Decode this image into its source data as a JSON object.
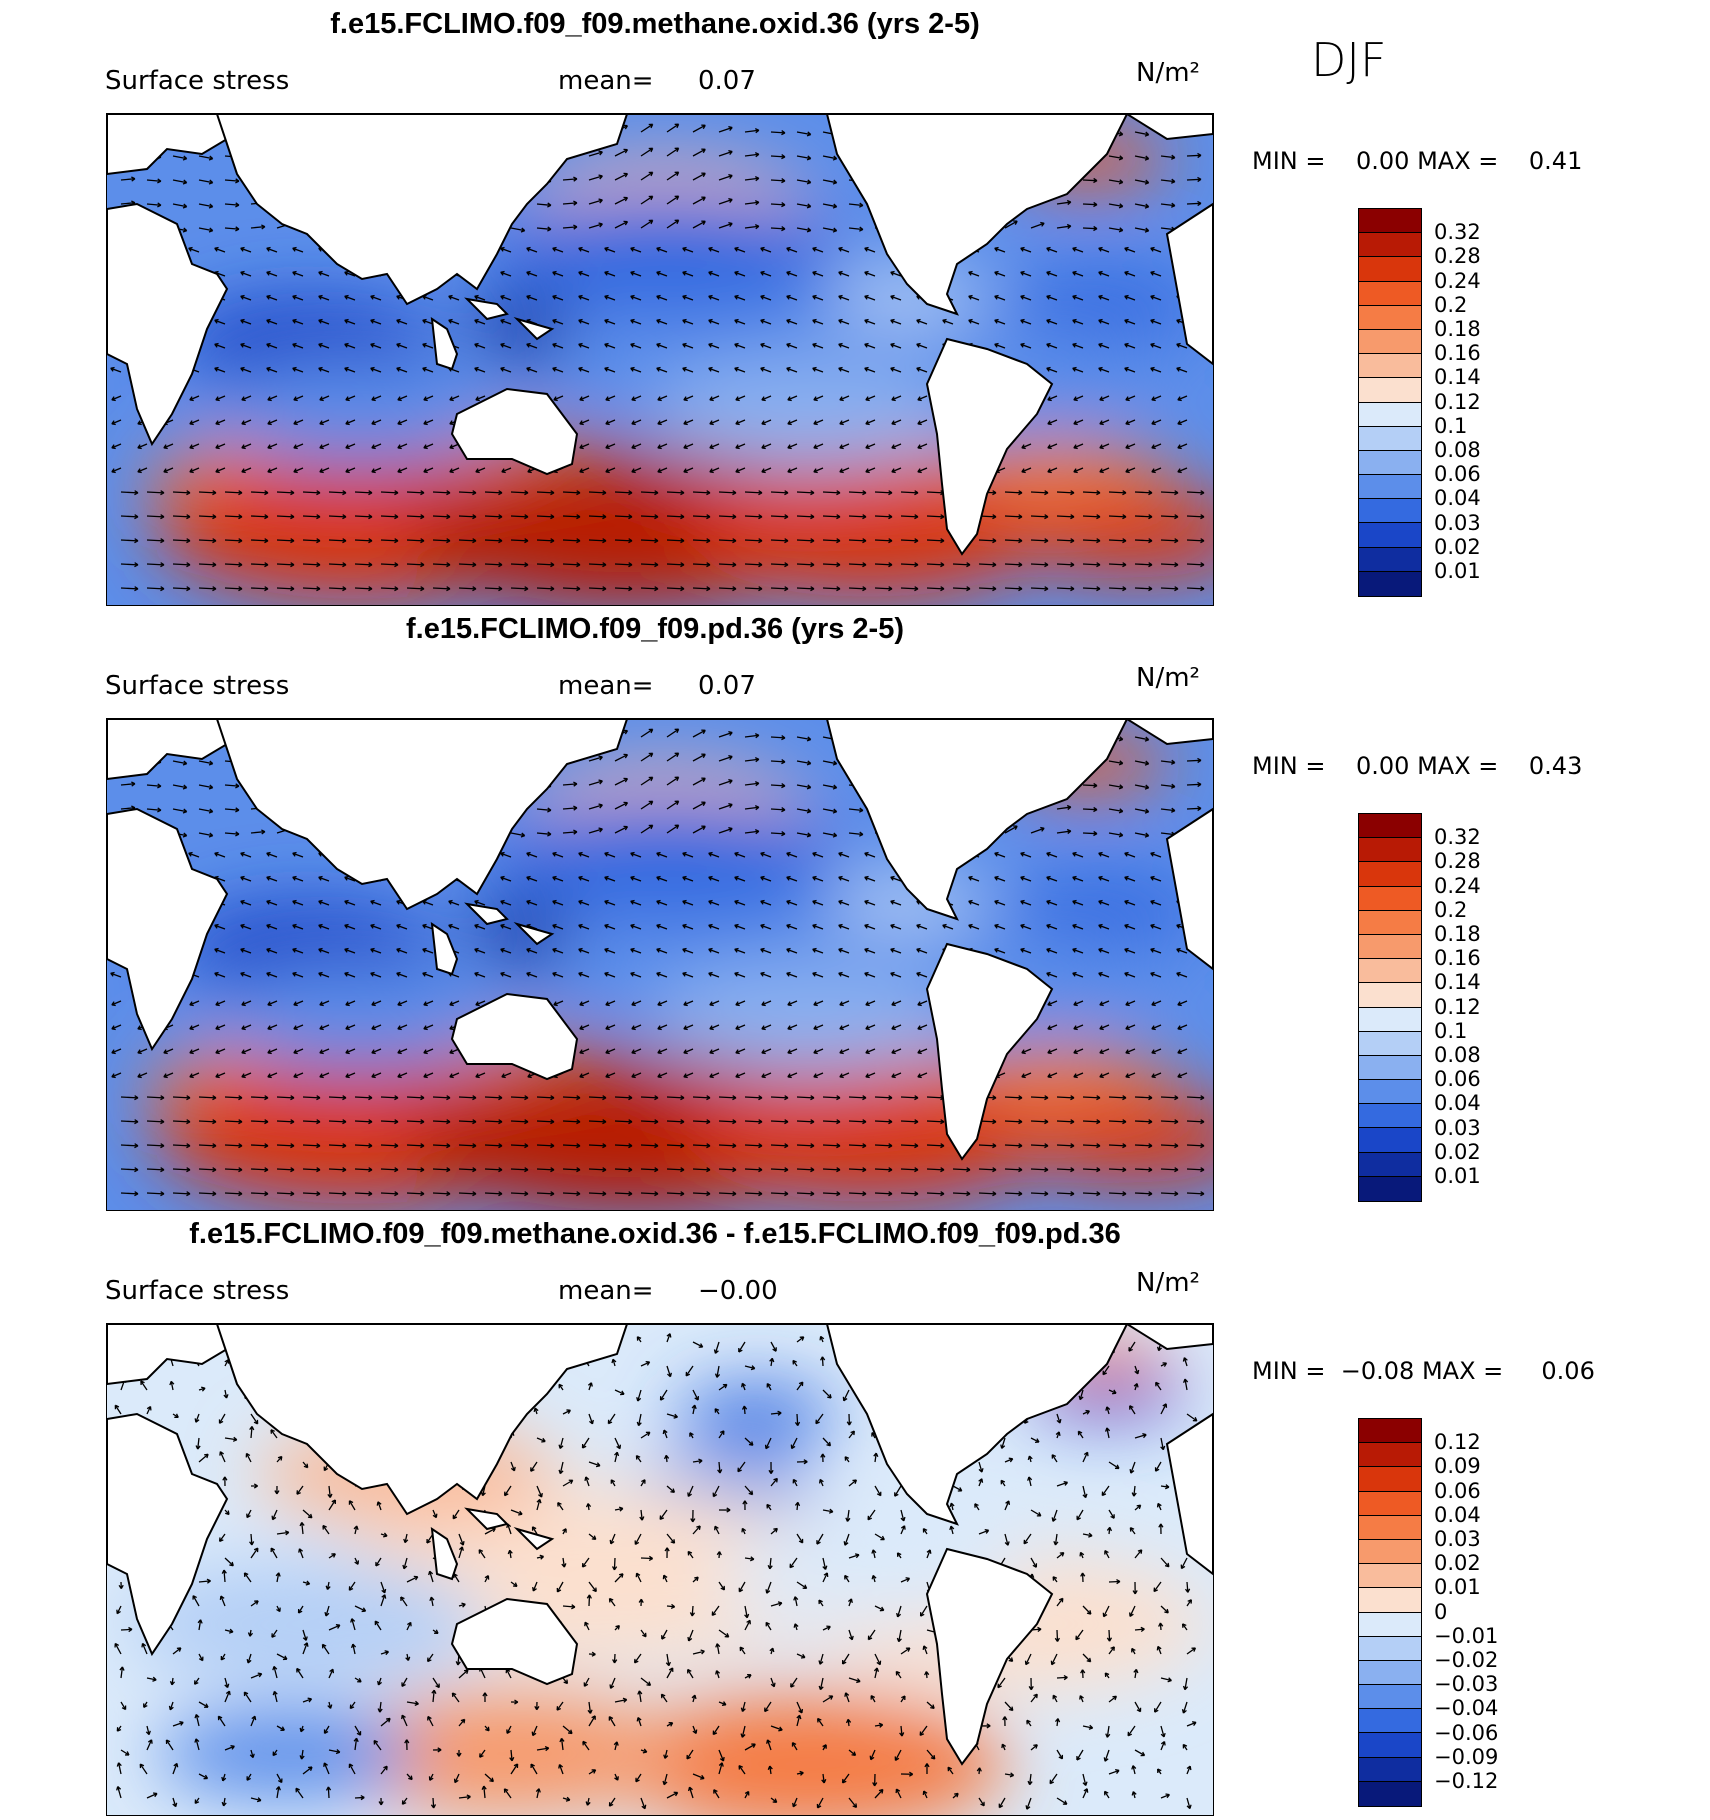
{
  "season": "DJF",
  "panels": [
    {
      "title": "f.e15.FCLIMO.f09_f09.methane.oxid.36 (yrs 2-5)",
      "variable": "Surface stress",
      "mean_label": "mean=",
      "mean_value": "0.07",
      "units": "N/m²",
      "min_label": "MIN =",
      "min_value": "0.00",
      "max_label": "MAX =",
      "max_value": "0.41",
      "colorbar": [
        "0.32",
        "0.28",
        "0.24",
        "0.2",
        "0.18",
        "0.16",
        "0.14",
        "0.12",
        "0.1",
        "0.08",
        "0.06",
        "0.04",
        "0.03",
        "0.02",
        "0.01"
      ],
      "colors": [
        "#8b0000",
        "#b81a05",
        "#d9360c",
        "#ee5a24",
        "#f57c45",
        "#f79a6c",
        "#f9bc9c",
        "#fbe0cf",
        "#dbeafa",
        "#b4cff6",
        "#8ab0f0",
        "#5c8eea",
        "#346ae0",
        "#1a46c8",
        "#0f2da0",
        "#08197a"
      ]
    },
    {
      "title": "f.e15.FCLIMO.f09_f09.pd.36 (yrs 2-5)",
      "variable": "Surface stress",
      "mean_label": "mean=",
      "mean_value": "0.07",
      "units": "N/m²",
      "min_label": "MIN =",
      "min_value": "0.00",
      "max_label": "MAX =",
      "max_value": "0.43",
      "colorbar": [
        "0.32",
        "0.28",
        "0.24",
        "0.2",
        "0.18",
        "0.16",
        "0.14",
        "0.12",
        "0.1",
        "0.08",
        "0.06",
        "0.04",
        "0.03",
        "0.02",
        "0.01"
      ],
      "colors": [
        "#8b0000",
        "#b81a05",
        "#d9360c",
        "#ee5a24",
        "#f57c45",
        "#f79a6c",
        "#f9bc9c",
        "#fbe0cf",
        "#dbeafa",
        "#b4cff6",
        "#8ab0f0",
        "#5c8eea",
        "#346ae0",
        "#1a46c8",
        "#0f2da0",
        "#08197a"
      ]
    },
    {
      "title": "f.e15.FCLIMO.f09_f09.methane.oxid.36 - f.e15.FCLIMO.f09_f09.pd.36",
      "variable": "Surface stress",
      "mean_label": "mean=",
      "mean_value": "−0.00",
      "units": "N/m²",
      "min_label": "MIN =",
      "min_value": "−0.08",
      "max_label": "MAX =",
      "max_value": "0.06",
      "colorbar": [
        "0.12",
        "0.09",
        "0.06",
        "0.04",
        "0.03",
        "0.02",
        "0.01",
        "0",
        "−0.01",
        "−0.02",
        "−0.03",
        "−0.04",
        "−0.06",
        "−0.09",
        "−0.12"
      ],
      "colors": [
        "#8b0000",
        "#b81a05",
        "#d9360c",
        "#ee5a24",
        "#f57c45",
        "#f79a6c",
        "#f9bc9c",
        "#fbe0cf",
        "#dbeafa",
        "#b4cff6",
        "#8ab0f0",
        "#5c8eea",
        "#346ae0",
        "#1a46c8",
        "#0f2da0",
        "#08197a"
      ]
    }
  ]
}
